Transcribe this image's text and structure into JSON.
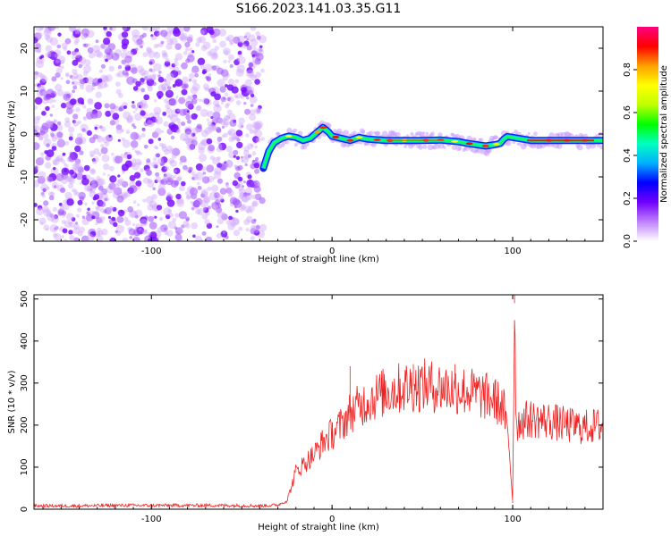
{
  "title": "S166.2023.141.03.35.G11",
  "chart_data": [
    {
      "type": "heatmap",
      "xlabel": "Height of straight line (km)",
      "ylabel": "Frequency (Hz)",
      "xlim": [
        -165,
        150
      ],
      "ylim": [
        -25,
        25
      ],
      "x_ticks": [
        -100,
        0,
        100
      ],
      "y_ticks": [
        -20,
        -10,
        0,
        10,
        20
      ],
      "colorbar": {
        "label": "Normalized spectral amplitude",
        "range": [
          0,
          1
        ],
        "ticks": [
          "0.0",
          "0.2",
          "0.4",
          "0.6",
          "0.8"
        ],
        "colors": [
          "#ffffff",
          "#c080ff",
          "#7000ff",
          "#0000ff",
          "#00b0ff",
          "#00ffc0",
          "#00ff00",
          "#c0ff00",
          "#ffff00",
          "#ffa000",
          "#ff0000",
          "#ff0080"
        ]
      },
      "noise_region_x": [
        -165,
        -38
      ],
      "signal_track": {
        "x": [
          -38,
          -35,
          -32,
          -28,
          -24,
          -20,
          -16,
          -12,
          -8,
          -5,
          -2,
          0,
          5,
          10,
          15,
          20,
          30,
          40,
          50,
          60,
          70,
          75,
          80,
          85,
          90,
          93,
          95,
          97,
          100,
          110,
          120,
          130,
          140,
          150
        ],
        "frequency_hz": [
          -8,
          -4,
          -2,
          -1,
          -0.5,
          -0.8,
          -1.5,
          -1,
          0.5,
          1.5,
          0.5,
          -0.5,
          -1,
          -1.5,
          -0.8,
          -1.2,
          -1.5,
          -1.5,
          -1.5,
          -1.4,
          -1.8,
          -2.2,
          -2.5,
          -2.8,
          -2.5,
          -2.2,
          -1.2,
          -0.6,
          -0.8,
          -1.5,
          -1.5,
          -1.5,
          -1.5,
          -1.5
        ]
      }
    },
    {
      "type": "line",
      "xlabel": "Height of straight line (km)",
      "ylabel": "SNR (10 * v/v)",
      "xlim": [
        -165,
        150
      ],
      "ylim": [
        0,
        510
      ],
      "x_ticks": [
        -100,
        0,
        100
      ],
      "y_ticks": [
        0,
        100,
        200,
        300,
        400,
        500
      ],
      "color": "#ee2222",
      "series": [
        {
          "x": [
            -165,
            -140,
            -120,
            -100,
            -80,
            -60,
            -40,
            -30,
            -25,
            -22,
            -20,
            -15,
            -10,
            -5,
            0,
            5,
            10,
            20,
            30,
            40,
            50,
            60,
            70,
            80,
            90,
            95,
            98,
            100,
            101,
            102,
            105,
            110,
            120,
            130,
            140,
            150
          ],
          "values": [
            8,
            8,
            9,
            9,
            9,
            9,
            8,
            10,
            20,
            60,
            90,
            110,
            130,
            160,
            180,
            200,
            230,
            260,
            280,
            290,
            295,
            290,
            285,
            275,
            260,
            240,
            150,
            20,
            490,
            200,
            210,
            215,
            210,
            200,
            195,
            200
          ],
          "spikes": [
            {
              "x": 101,
              "value": 510
            },
            {
              "x": 100,
              "value": 15
            },
            {
              "x": 10,
              "value": 340
            },
            {
              "x": 45,
              "value": 345
            },
            {
              "x": 68,
              "value": 345
            }
          ]
        }
      ]
    }
  ]
}
